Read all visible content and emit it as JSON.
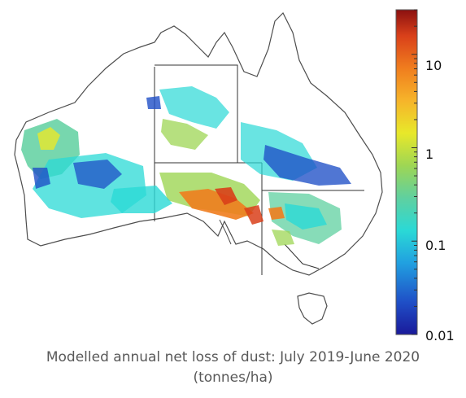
{
  "caption": {
    "line1": "Modelled annual net loss of dust: July 2019-June 2020",
    "line2": "(tonnes/ha)"
  },
  "colorbar": {
    "scale": "log",
    "range": [
      0.01,
      30
    ],
    "ticks": [
      {
        "label": "10",
        "value": 10
      },
      {
        "label": "1",
        "value": 1
      },
      {
        "label": "0.1",
        "value": 0.1
      },
      {
        "label": "0.01",
        "value": 0.01
      }
    ],
    "colors": [
      "#1a1a9a",
      "#1f4fc7",
      "#21a0e0",
      "#2ad9d6",
      "#5fd0a0",
      "#9ed654",
      "#e8e82a",
      "#f6b42a",
      "#f07d1e",
      "#d9401a",
      "#8b1010"
    ]
  },
  "map": {
    "region": "Australia",
    "colors": {
      "coastline": "#4d4d4d",
      "borders": "#333333",
      "low": "#1f4fc7",
      "medium": "#2ad9d6",
      "elevated": "#9ed654",
      "high": "#f07d1e",
      "very_high": "#d9401a"
    }
  }
}
